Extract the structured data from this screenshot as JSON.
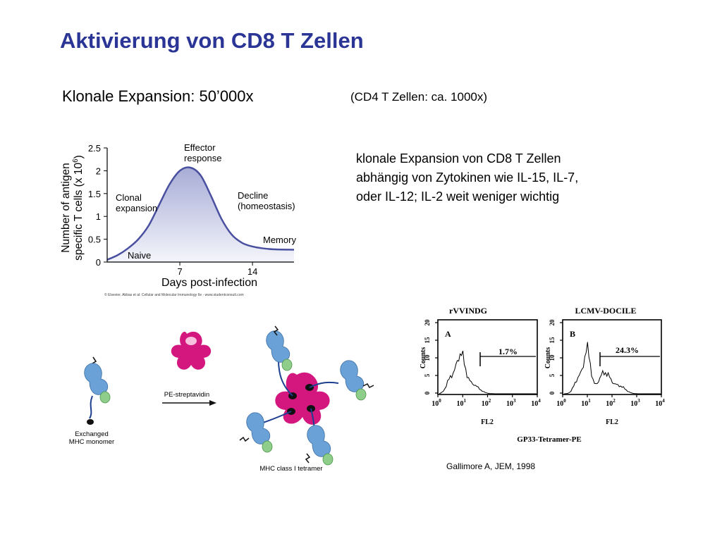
{
  "slide": {
    "title": "Aktivierung von CD8 T Zellen",
    "subtitle_left": "Klonale Expansion: 50’000x",
    "subtitle_right": "(CD4 T Zellen: ca. 1000x)",
    "note_lines": [
      "klonale Expansion von CD8 T Zellen",
      "abhängig von Zytokinen wie IL-15, IL-7,",
      "oder IL-12; IL-2 weit weniger wichtig"
    ],
    "credit": "Gallimore A, JEM, 1998"
  },
  "expansion_figure": {
    "ylabel_line1": "Number of antigen",
    "ylabel_line2": "specific T cells (x 10",
    "ylabel_exp": "6",
    "ylabel_close": ")",
    "xlabel": "Days  post-infection",
    "y_ticks": [
      "2.5",
      "2",
      "1.5",
      "1",
      "0.5",
      "0"
    ],
    "x_ticks": [
      "7",
      "14"
    ],
    "annotations": {
      "effector_1": "Effector",
      "effector_2": "response",
      "clonal_1": "Clonal",
      "clonal_2": "expansion",
      "decline_1": "Decline",
      "decline_2": "(homeostasis)",
      "memory": "Memory",
      "naive": "Naive"
    },
    "copyright": "© Elsevier. Abbas et al: Cellular and Molecular Immunology 6e - www.studentconsult.com",
    "colors": {
      "fill_top": "#a7acd6",
      "fill_bottom": "#f4f5fb",
      "curve": "#4a50a0"
    }
  },
  "tetramer_figure": {
    "monomer_label_1": "Exchanged",
    "monomer_label_2": "MHC monomer",
    "arrow_label": "PE-streptavidin",
    "tetramer_label": "MHC class I tetramer",
    "colors": {
      "mhc": "#6aa2d8",
      "peptide": "#8fce8a",
      "streptavidin": "#d4177f",
      "biotin": "#111111"
    }
  },
  "flow_figure": {
    "panel_a_title": "rVVINDG",
    "panel_b_title": "LCMV-DOCILE",
    "panel_a_letter": "A",
    "panel_b_letter": "B",
    "panel_a_pct": "1.7%",
    "panel_b_pct": "24.3%",
    "ylabel": "Counts",
    "y_ticks": [
      "20",
      "15",
      "10",
      "5",
      "0"
    ],
    "x_ticks": [
      "10",
      "10",
      "10",
      "10",
      "10"
    ],
    "x_exps": [
      "0",
      "1",
      "2",
      "3",
      "4"
    ],
    "xlabel": "FL2",
    "bottom_label": "GP33-Tetramer-PE"
  },
  "chart_data": [
    {
      "type": "area",
      "xlabel": "Days  post-infection",
      "ylabel": "Number of antigen specific T cells (x 10^6)",
      "ylim": [
        0,
        2.5
      ],
      "xlim": [
        0,
        18
      ],
      "x_ticks": [
        7,
        14
      ],
      "y_ticks": [
        0,
        0.5,
        1,
        1.5,
        2,
        2.5
      ],
      "grid": false,
      "x": [
        0,
        1,
        2,
        3,
        4,
        5,
        6,
        7,
        8,
        9,
        10,
        11,
        12,
        13,
        14,
        15,
        16,
        18
      ],
      "y": [
        0.05,
        0.15,
        0.3,
        0.5,
        0.8,
        1.25,
        1.7,
        2.0,
        2.07,
        1.9,
        1.45,
        0.95,
        0.6,
        0.42,
        0.34,
        0.3,
        0.28,
        0.27
      ]
    }
  ]
}
